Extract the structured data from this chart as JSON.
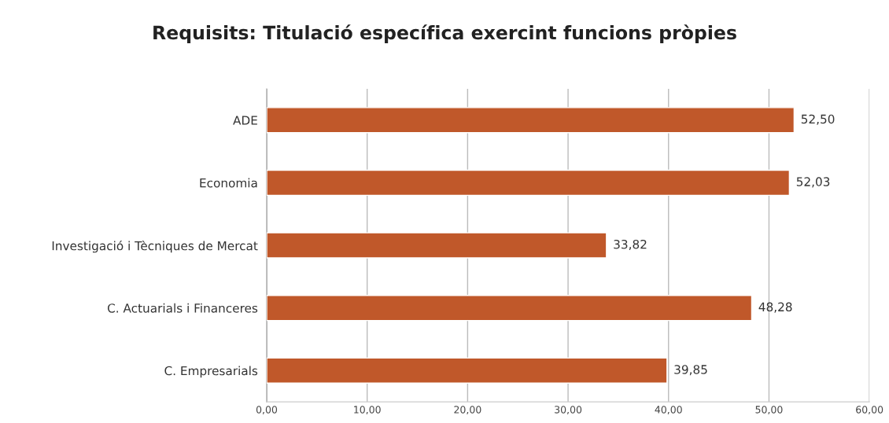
{
  "chart_data": {
    "type": "bar",
    "orientation": "horizontal",
    "title": "Requisits: Titulació específica exercint funcions pròpies",
    "categories": [
      "ADE",
      "Economia",
      "Investigació i Tècniques de Mercat",
      "C. Actuarials i Financeres",
      "C. Empresarials"
    ],
    "values": [
      52.5,
      52.03,
      33.82,
      48.28,
      39.85
    ],
    "value_labels": [
      "52,50",
      "52,03",
      "33,82",
      "48,28",
      "39,85"
    ],
    "color": "#c0582a",
    "xlim": [
      0,
      60
    ],
    "xticks": [
      {
        "value": 0,
        "label": "0,00"
      },
      {
        "value": 10,
        "label": "10,00"
      },
      {
        "value": 20,
        "label": "20,00"
      },
      {
        "value": 30,
        "label": "30,00"
      },
      {
        "value": 40,
        "label": "40,00"
      },
      {
        "value": 50,
        "label": "50,00"
      },
      {
        "value": 60,
        "label": "60,00"
      }
    ],
    "grid": "x"
  }
}
